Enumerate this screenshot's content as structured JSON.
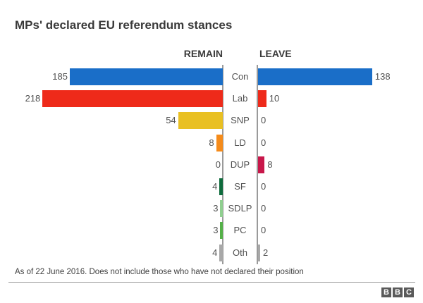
{
  "chart_data": {
    "type": "bar",
    "orientation": "horizontal-diverging",
    "title": "MPs' declared EU referendum stances",
    "left_label": "REMAIN",
    "right_label": "LEAVE",
    "categories": [
      "Con",
      "Lab",
      "SNP",
      "LD",
      "DUP",
      "SF",
      "SDLP",
      "PC",
      "Oth"
    ],
    "series": [
      {
        "name": "REMAIN",
        "values": [
          185,
          218,
          54,
          8,
          0,
          4,
          3,
          3,
          4
        ]
      },
      {
        "name": "LEAVE",
        "values": [
          138,
          10,
          0,
          0,
          8,
          0,
          0,
          0,
          2
        ]
      }
    ],
    "colors": [
      "#1a6ec8",
      "#ee2a1a",
      "#e9c022",
      "#f58b1a",
      "#c8174a",
      "#0e6b3c",
      "#8fcf8f",
      "#54b148",
      "#a8a8a8"
    ],
    "annotation": "As of 22 June 2016. Does not include those who have not declared their position",
    "source_logo": "BBC",
    "grid": false
  },
  "logo": [
    "B",
    "B",
    "C"
  ]
}
